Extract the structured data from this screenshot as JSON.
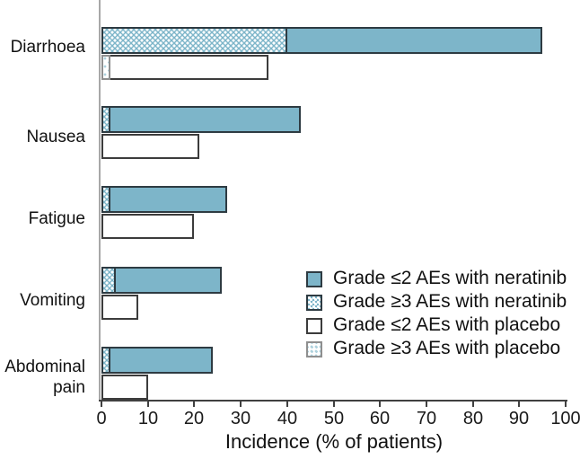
{
  "chart_data": {
    "type": "bar",
    "orientation": "horizontal",
    "stacked": true,
    "grid": false,
    "xlabel": "Incidence (% of patients)",
    "xlim": [
      0,
      100
    ],
    "xticks": [
      0,
      10,
      20,
      30,
      40,
      50,
      60,
      70,
      80,
      90,
      100
    ],
    "categories": [
      "Diarrhoea",
      "Nausea",
      "Fatigue",
      "Vomiting",
      "Abdominal pain"
    ],
    "series": [
      {
        "name": "Grade ≥3 AEs with neratinib",
        "group": "neratinib",
        "style": "teal-dotted",
        "values": [
          40,
          2,
          2,
          3,
          2
        ]
      },
      {
        "name": "Grade ≤2 AEs with neratinib",
        "group": "neratinib",
        "style": "teal-solid",
        "values": [
          55,
          41,
          25,
          23,
          22
        ]
      },
      {
        "name": "Grade ≥3 AEs with placebo",
        "group": "placebo",
        "style": "white-dotted",
        "values": [
          2,
          0,
          0,
          0,
          0
        ]
      },
      {
        "name": "Grade ≤2 AEs with placebo",
        "group": "placebo",
        "style": "white-solid",
        "values": [
          34,
          21,
          20,
          8,
          10
        ]
      }
    ],
    "totals": {
      "neratinib": [
        95,
        43,
        27,
        26,
        24
      ],
      "placebo": [
        36,
        21,
        20,
        8,
        10
      ]
    },
    "legend_position": "inside-right",
    "legend": [
      {
        "label": "Grade ≤2 AEs with neratinib",
        "style": "teal-solid"
      },
      {
        "label": "Grade ≥3 AEs with neratinib",
        "style": "teal-dotted"
      },
      {
        "label": "Grade ≤2 AEs with placebo",
        "style": "white-solid"
      },
      {
        "label": "Grade ≥3 AEs with placebo",
        "style": "white-dotted"
      }
    ],
    "colors": {
      "teal": "#7db5c9",
      "placebo_dot": "#aed2de",
      "bar_border": "#2e3b42",
      "placebo_border": "#3c3c3c",
      "axis_y": "#a8a8a8",
      "axis_x": "#404040",
      "text": "#111111"
    }
  }
}
